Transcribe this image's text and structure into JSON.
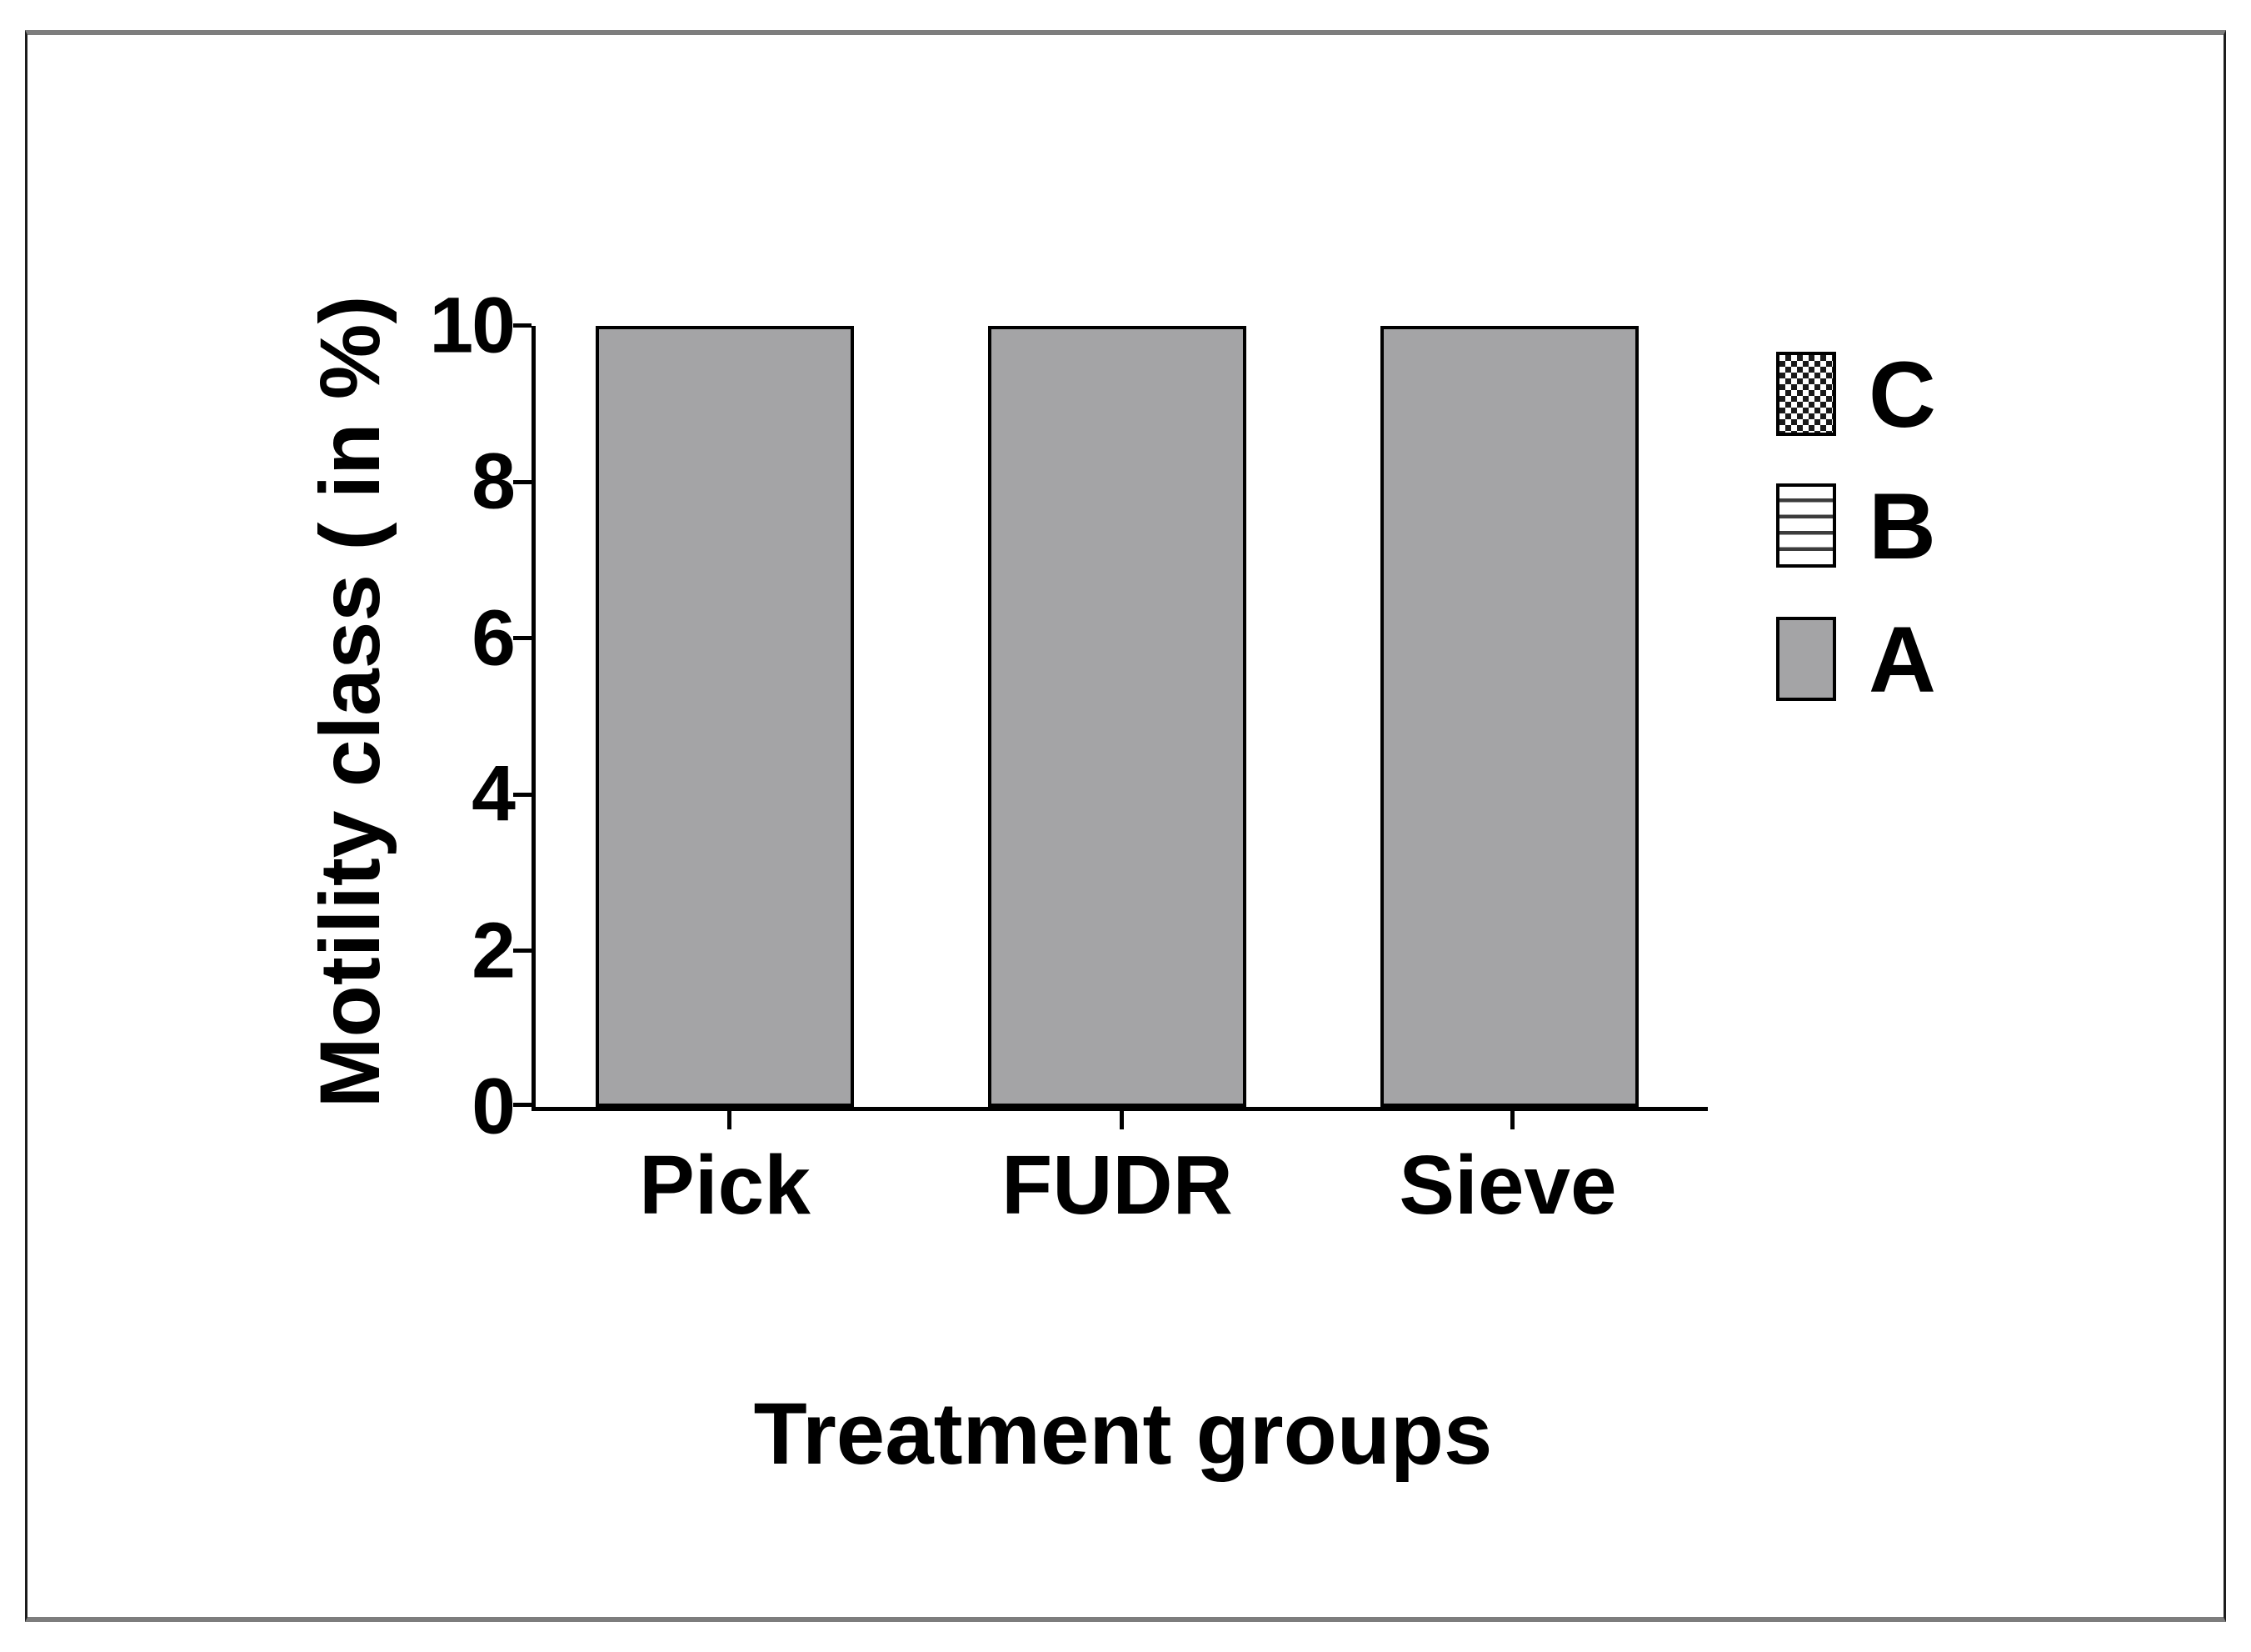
{
  "chart_data": {
    "type": "bar",
    "title": "",
    "categories": [
      "Pick",
      "FUDR",
      "Sieve"
    ],
    "series": [
      {
        "name": "A",
        "values": [
          10,
          10,
          10
        ]
      }
    ],
    "xlabel": "Treatment groups",
    "ylabel": "Motility class ( in %)",
    "ylim": [
      0,
      10
    ],
    "yticks": [
      0,
      2,
      4,
      6,
      8,
      10
    ],
    "grid": false,
    "legend_position": "right-outside",
    "legend": {
      "entries": [
        {
          "label": "C",
          "pattern": "checkerboard"
        },
        {
          "label": "B",
          "pattern": "horizontal-stripes"
        },
        {
          "label": "A",
          "pattern": "solid-gray"
        }
      ]
    },
    "colors": {
      "bar_fill": "#a4a4a6",
      "bar_border": "#000000",
      "axis": "#000000",
      "frame_top_bottom": "#7d7d7d",
      "frame_sides": "#1c1c1c",
      "background": "#ffffff"
    }
  }
}
